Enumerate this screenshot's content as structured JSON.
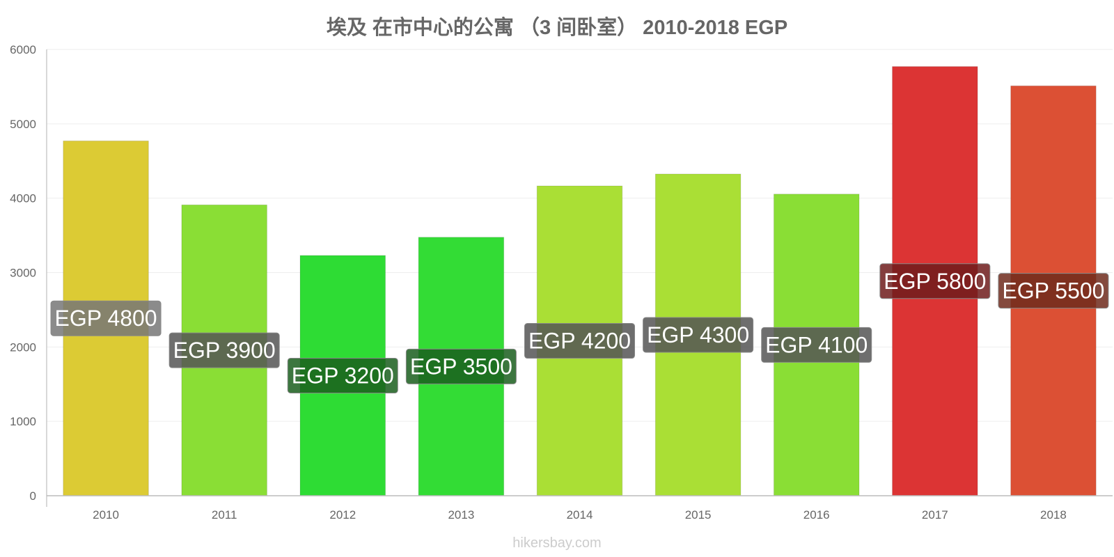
{
  "chart_data": {
    "type": "bar",
    "title": "埃及 在市中心的公寓 （3 间卧室） 2010-2018 EGP",
    "categories": [
      "2010",
      "2011",
      "2012",
      "2013",
      "2014",
      "2015",
      "2016",
      "2017",
      "2018"
    ],
    "values": [
      4770,
      3910,
      3230,
      3475,
      4165,
      4325,
      4055,
      5770,
      5510
    ],
    "data_labels": [
      "EGP 4800",
      "EGP 3900",
      "EGP 3200",
      "EGP 3500",
      "EGP 4200",
      "EGP 4300",
      "EGP 4100",
      "EGP 5800",
      "EGP 5500"
    ],
    "colors": [
      "#dccb34",
      "#8ade35",
      "#2edc34",
      "#33dc35",
      "#aadf35",
      "#aadf35",
      "#8ade35",
      "#dc3434",
      "#dc5034"
    ],
    "label_bg_colors": [
      "#777777",
      "#555555",
      "#1a5e1d",
      "#1a5e1d",
      "#555555",
      "#555555",
      "#555555",
      "#6e1c1c",
      "#6e2a1c"
    ],
    "y_ticks": [
      "0",
      "1000",
      "2000",
      "3000",
      "4000",
      "5000",
      "6000"
    ],
    "ylim": [
      0,
      6000
    ],
    "grid": true,
    "legend": "none",
    "xlabel": "",
    "ylabel": ""
  },
  "watermark": "hikersbay.com"
}
